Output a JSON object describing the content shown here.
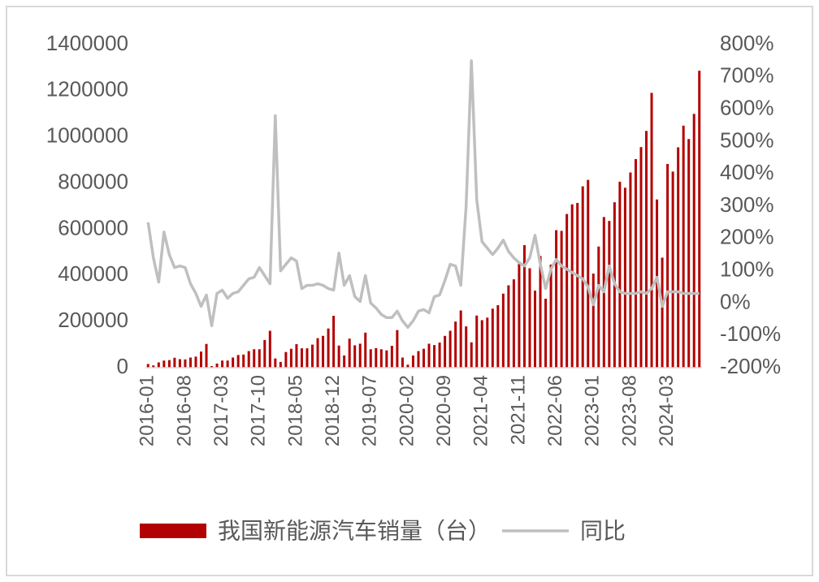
{
  "chart_data": {
    "type": "bar",
    "categories": [
      "2016-01",
      null,
      null,
      null,
      null,
      null,
      null,
      "2016-08",
      null,
      null,
      null,
      null,
      null,
      null,
      "2017-03",
      null,
      null,
      null,
      null,
      null,
      null,
      "2017-10",
      null,
      null,
      null,
      null,
      null,
      null,
      "2018-05",
      null,
      null,
      null,
      null,
      null,
      null,
      "2018-12",
      null,
      null,
      null,
      null,
      null,
      null,
      "2019-07",
      null,
      null,
      null,
      null,
      null,
      null,
      "2020-02",
      null,
      null,
      null,
      null,
      null,
      null,
      "2020-09",
      null,
      null,
      null,
      null,
      null,
      null,
      "2021-04",
      null,
      null,
      null,
      null,
      null,
      null,
      "2021-11",
      null,
      null,
      null,
      null,
      null,
      null,
      "2022-06",
      null,
      null,
      null,
      null,
      null,
      null,
      "2023-01",
      null,
      null,
      null,
      null,
      null,
      null,
      "2023-08",
      null,
      null,
      null,
      null,
      null,
      null,
      "2024-03",
      null,
      null,
      null,
      null,
      null,
      null
    ],
    "series": [
      {
        "name": "我国新能源汽车销量（台）",
        "type": "bar",
        "color": "#b30000",
        "values": [
          16000,
          10000,
          23000,
          31000,
          33000,
          43000,
          37000,
          36000,
          44000,
          48000,
          70000,
          103000,
          7000,
          18000,
          31000,
          31000,
          44000,
          55000,
          57000,
          72000,
          80000,
          80000,
          120000,
          160000,
          40000,
          25000,
          68000,
          82000,
          102000,
          84000,
          84000,
          100000,
          128000,
          138000,
          170000,
          225000,
          96000,
          53000,
          126000,
          97000,
          104000,
          152000,
          80000,
          85000,
          80000,
          75000,
          95000,
          163000,
          44000,
          13000,
          53000,
          72000,
          82000,
          104000,
          98000,
          109000,
          138000,
          160000,
          200000,
          248000,
          179000,
          110000,
          226000,
          206000,
          217000,
          256000,
          271000,
          321000,
          357000,
          383000,
          450000,
          531000,
          431000,
          334000,
          484000,
          299000,
          447000,
          596000,
          593000,
          666000,
          708000,
          714000,
          786000,
          814000,
          408000,
          525000,
          653000,
          636000,
          717000,
          806000,
          780000,
          846000,
          904000,
          956000,
          1026000,
          1191000,
          729000,
          477000,
          883000,
          850000,
          955000,
          1049000,
          991000,
          1100000,
          1287000
        ]
      },
      {
        "name": "同比",
        "type": "line",
        "axis": "y2",
        "color": "#bfbfbf",
        "values": [
          250,
          140,
          65,
          220,
          150,
          110,
          115,
          110,
          60,
          30,
          -10,
          25,
          -70,
          30,
          40,
          15,
          30,
          35,
          55,
          75,
          80,
          110,
          85,
          60,
          580,
          100,
          120,
          140,
          130,
          45,
          55,
          55,
          60,
          55,
          45,
          40,
          155,
          55,
          85,
          20,
          5,
          85,
          0,
          -15,
          -35,
          -45,
          -45,
          -25,
          -55,
          -75,
          -55,
          -25,
          -20,
          -30,
          20,
          25,
          70,
          120,
          115,
          55,
          300,
          750,
          320,
          190,
          170,
          150,
          170,
          195,
          160,
          140,
          125,
          115,
          140,
          210,
          120,
          45,
          105,
          135,
          115,
          105,
          95,
          85,
          75,
          50,
          -5,
          55,
          35,
          115,
          60,
          35,
          30,
          30,
          30,
          35,
          30,
          45,
          80,
          -10,
          35,
          35,
          35,
          30,
          30,
          30,
          30
        ]
      }
    ],
    "ylim": [
      0,
      1400000
    ],
    "yticks": [
      0,
      200000,
      400000,
      600000,
      800000,
      1000000,
      1200000,
      1400000
    ],
    "y2lim": [
      -200,
      800
    ],
    "y2ticks": [
      {
        "value": -200,
        "label": "-200%"
      },
      {
        "value": -100,
        "label": "-100%"
      },
      {
        "value": 0,
        "label": "0%"
      },
      {
        "value": 100,
        "label": "100%"
      },
      {
        "value": 200,
        "label": "200%"
      },
      {
        "value": 300,
        "label": "300%"
      },
      {
        "value": 400,
        "label": "400%"
      },
      {
        "value": 500,
        "label": "500%"
      },
      {
        "value": 600,
        "label": "600%"
      },
      {
        "value": 700,
        "label": "700%"
      },
      {
        "value": 800,
        "label": "800%"
      }
    ],
    "legend": "bottom"
  }
}
